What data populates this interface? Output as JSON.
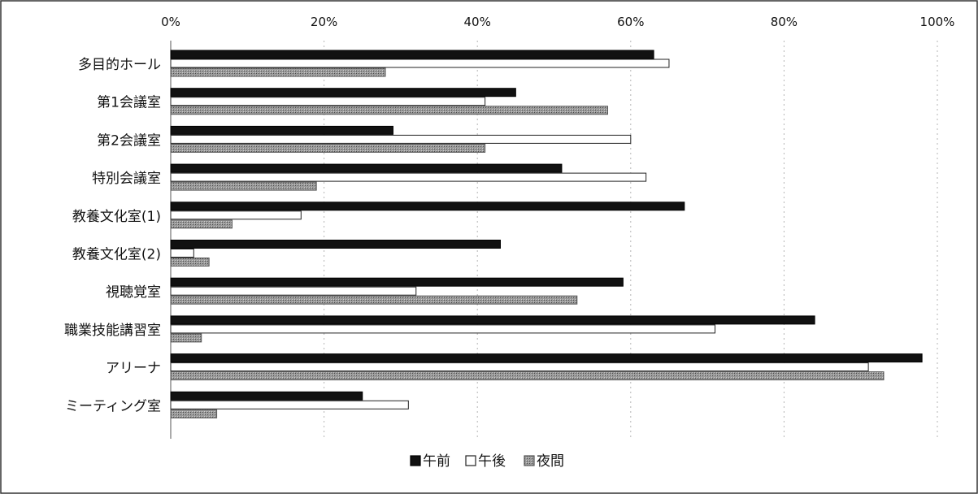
{
  "chart_data": {
    "type": "bar",
    "orientation": "horizontal",
    "categories": [
      "多目的ホール",
      "第1会議室",
      "第2会議室",
      "特別会議室",
      "教養文化室(1)",
      "教養文化室(2)",
      "視聴覚室",
      "職業技能講習室",
      "アリーナ",
      "ミーティング室"
    ],
    "series": [
      {
        "name": "午前",
        "values": [
          63,
          45,
          29,
          51,
          67,
          43,
          59,
          84,
          98,
          25
        ]
      },
      {
        "name": "午後",
        "values": [
          65,
          41,
          60,
          62,
          17,
          3,
          32,
          71,
          91,
          31
        ]
      },
      {
        "name": "夜間",
        "values": [
          28,
          57,
          41,
          19,
          8,
          5,
          53,
          4,
          93,
          6
        ]
      }
    ],
    "xlim": [
      0,
      100
    ],
    "x_ticks": [
      "0%",
      "20%",
      "40%",
      "60%",
      "80%",
      "100%"
    ],
    "x_axis_position": "top",
    "grid": true,
    "legend_position": "bottom",
    "colors": {
      "午前": "#111111",
      "午後": "#ffffff",
      "夜間": "#8a8a8a"
    }
  }
}
